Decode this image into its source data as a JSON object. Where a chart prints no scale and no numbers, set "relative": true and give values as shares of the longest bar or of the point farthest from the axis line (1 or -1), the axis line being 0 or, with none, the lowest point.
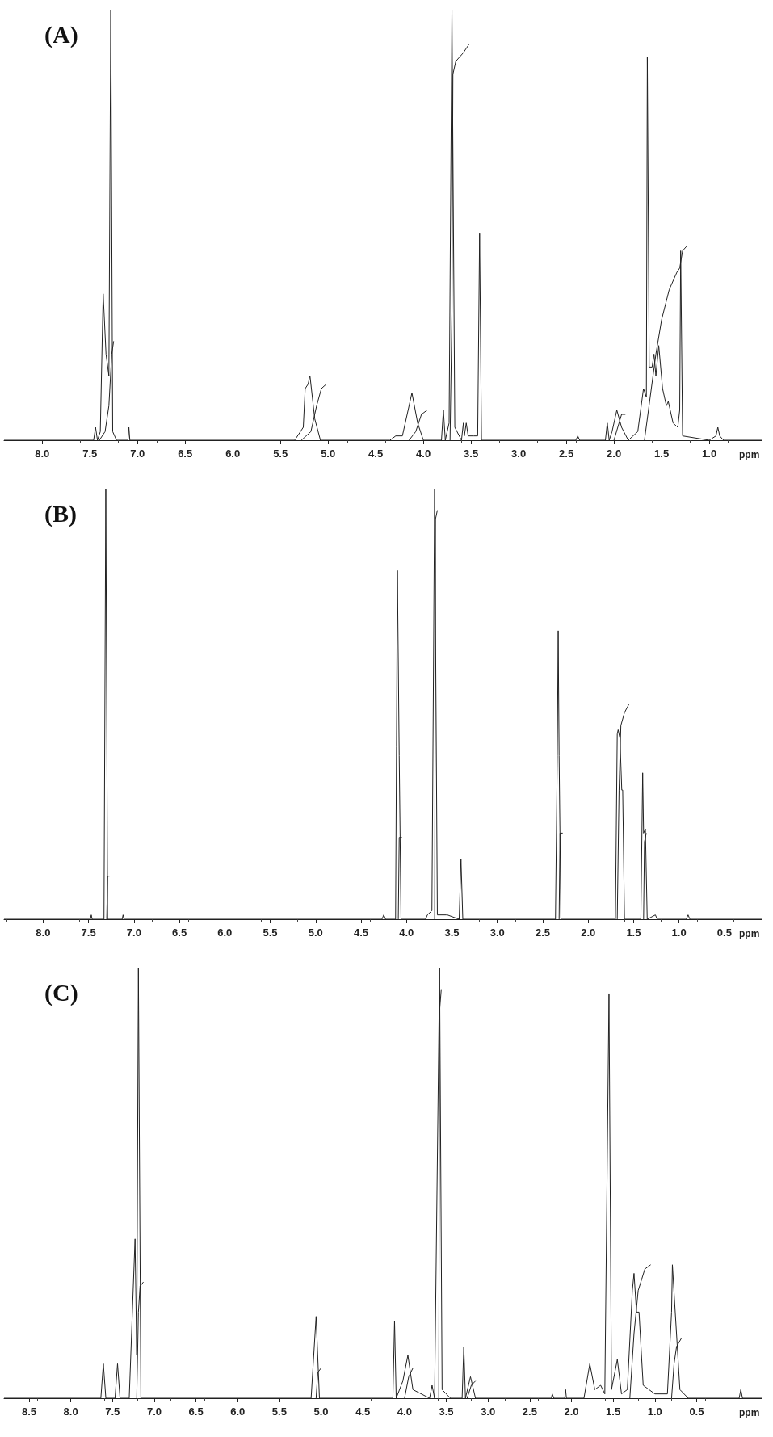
{
  "chart_data": [
    {
      "type": "line",
      "title": "(A)",
      "xlabel": "ppm",
      "relative": true,
      "xlim": [
        8.4,
        0.45
      ],
      "xticks": [
        {
          "value": 8,
          "label": "8.0"
        },
        7.5,
        {
          "value": 7,
          "label": "7.0"
        },
        6.5,
        {
          "value": 6,
          "label": "6.0"
        },
        5.5,
        {
          "value": 5,
          "label": "5.0"
        },
        4.5,
        {
          "value": 4,
          "label": "4.0"
        },
        3.5,
        {
          "value": 3,
          "label": "3.0"
        },
        2.5,
        {
          "value": 2,
          "label": "2.0"
        },
        1.5,
        {
          "value": 1,
          "label": "1.0"
        }
      ],
      "series": [
        {
          "color": "#222222",
          "x": [
            8.4,
            7.46,
            7.44,
            7.42,
            7.39,
            7.36,
            7.33,
            7.3,
            7.28,
            7.26,
            7.22,
            7.1,
            7.09,
            7.08,
            5.35,
            5.26,
            5.24,
            5.21,
            5.19,
            5.14,
            5.08,
            4.35,
            4.29,
            4.22,
            4.17,
            4.12,
            4.06,
            4.0,
            3.81,
            3.79,
            3.77,
            3.73,
            3.7,
            3.67,
            3.6,
            3.58,
            3.57,
            3.55,
            3.53,
            3.47,
            3.43,
            3.41,
            3.39,
            2.4,
            2.38,
            2.36,
            2.09,
            2.07,
            2.05,
            2.02,
            1.97,
            1.92,
            1.85,
            1.75,
            1.69,
            1.66,
            1.65,
            1.63,
            1.6,
            1.58,
            1.56,
            1.53,
            1.49,
            1.45,
            1.43,
            1.38,
            1.33,
            1.31,
            1.3,
            1.28,
            1.0,
            0.93,
            0.91,
            0.89,
            0.85,
            0.45
          ],
          "values": [
            0,
            0,
            0.03,
            0,
            0.02,
            0.34,
            0.2,
            0.15,
            1,
            0.02,
            0,
            0,
            0.03,
            0,
            0,
            0.03,
            0.12,
            0.13,
            0.15,
            0.05,
            0,
            0,
            0.01,
            0.01,
            0.06,
            0.11,
            0.04,
            0,
            0,
            0.07,
            0,
            0.04,
            1,
            0.03,
            0,
            0.04,
            0.01,
            0.04,
            0.01,
            0.01,
            0.01,
            0.48,
            0,
            0,
            0.01,
            0,
            0,
            0.04,
            0,
            0.02,
            0.07,
            0.03,
            0,
            0.02,
            0.12,
            0.1,
            0.89,
            0.17,
            0.17,
            0.2,
            0.15,
            0.22,
            0.12,
            0.08,
            0.09,
            0.04,
            0.03,
            0.07,
            0.44,
            0.01,
            0,
            0.01,
            0.03,
            0.01,
            0,
            0
          ]
        },
        {
          "color": "#222222",
          "x": [
            7.4,
            7.34,
            7.3,
            7.27,
            7.25
          ],
          "values": [
            0,
            0.02,
            0.08,
            0.2,
            0.23
          ]
        },
        {
          "color": "#222222",
          "x": [
            5.28,
            5.18,
            5.12,
            5.07,
            5.02
          ],
          "values": [
            0,
            0.02,
            0.08,
            0.12,
            0.13
          ]
        },
        {
          "color": "#222222",
          "x": [
            4.15,
            4.08,
            4.02,
            3.96
          ],
          "values": [
            0,
            0.02,
            0.06,
            0.07
          ]
        },
        {
          "color": "#222222",
          "x": [
            3.72,
            3.7,
            3.69,
            3.66,
            3.58,
            3.52
          ],
          "values": [
            0,
            0.3,
            0.85,
            0.88,
            0.9,
            0.92
          ]
        },
        {
          "color": "#222222",
          "x": [
            2.0,
            1.96,
            1.92,
            1.88
          ],
          "values": [
            0,
            0.03,
            0.06,
            0.06
          ]
        },
        {
          "color": "#222222",
          "x": [
            1.68,
            1.62,
            1.56,
            1.5,
            1.42,
            1.34,
            1.31,
            1.28,
            1.24
          ],
          "values": [
            0,
            0.1,
            0.2,
            0.28,
            0.35,
            0.39,
            0.4,
            0.44,
            0.45
          ]
        }
      ]
    },
    {
      "type": "line",
      "title": "(B)",
      "xlabel": "ppm",
      "relative": true,
      "xlim": [
        8.43,
        0.09
      ],
      "xticks": [
        {
          "value": 8,
          "label": "8.0"
        },
        7.5,
        {
          "value": 7,
          "label": "7.0"
        },
        6.5,
        {
          "value": 6,
          "label": "6.0"
        },
        5.5,
        {
          "value": 5,
          "label": "5.0"
        },
        4.5,
        {
          "value": 4,
          "label": "4.0"
        },
        3.5,
        {
          "value": 3,
          "label": "3.0"
        },
        2.5,
        {
          "value": 2,
          "label": "2.0"
        },
        1.5,
        {
          "value": 1,
          "label": "1.0"
        },
        0.5
      ],
      "series": [
        {
          "color": "#222222",
          "x": [
            8.43,
            7.48,
            7.47,
            7.46,
            7.33,
            7.31,
            7.29,
            7.13,
            7.12,
            7.11,
            4.27,
            4.25,
            4.23,
            4.12,
            4.11,
            4.1,
            4.08,
            4.06,
            3.79,
            3.77,
            3.72,
            3.69,
            3.66,
            3.56,
            3.55,
            3.42,
            3.4,
            3.38,
            2.36,
            2.34,
            2.33,
            2.32,
            2.3,
            1.7,
            1.68,
            1.67,
            1.65,
            1.63,
            1.62,
            1.6,
            1.42,
            1.4,
            1.39,
            1.37,
            1.35,
            1.26,
            1.24,
            0.92,
            0.9,
            0.88,
            0.09
          ],
          "values": [
            0,
            0,
            0.01,
            0,
            0,
            1,
            0,
            0,
            0.01,
            0,
            0,
            0.01,
            0,
            0,
            0.4,
            0.81,
            0.38,
            0,
            0,
            0.01,
            0.02,
            1,
            0.01,
            0.01,
            0.01,
            0,
            0.14,
            0,
            0,
            0.38,
            0.67,
            0.38,
            0,
            0,
            0.43,
            0.44,
            0.42,
            0.3,
            0.3,
            0,
            0,
            0.34,
            0.2,
            0.21,
            0,
            0.01,
            0,
            0,
            0.01,
            0,
            0
          ]
        },
        {
          "color": "#222222",
          "x": [
            7.3,
            7.29,
            7.27
          ],
          "values": [
            0,
            0.1,
            0.1
          ]
        },
        {
          "color": "#222222",
          "x": [
            4.09,
            4.08,
            4.05
          ],
          "values": [
            0,
            0.19,
            0.19
          ]
        },
        {
          "color": "#222222",
          "x": [
            3.69,
            3.68,
            3.66
          ],
          "values": [
            0,
            0.93,
            0.95
          ]
        },
        {
          "color": "#222222",
          "x": [
            2.32,
            2.31,
            2.28
          ],
          "values": [
            0,
            0.2,
            0.2
          ]
        },
        {
          "color": "#222222",
          "x": [
            1.68,
            1.66,
            1.64,
            1.6,
            1.55
          ],
          "values": [
            0,
            0.3,
            0.45,
            0.48,
            0.5
          ]
        },
        {
          "color": "#222222",
          "x": [
            1.39,
            1.38,
            1.36
          ],
          "values": [
            0,
            0.18,
            0.2
          ]
        }
      ]
    },
    {
      "type": "line",
      "title": "(C)",
      "xlabel": "ppm",
      "relative": true,
      "xlim": [
        8.8,
        -0.28
      ],
      "xticks": [
        8.5,
        {
          "value": 8,
          "label": "8.0"
        },
        7.5,
        {
          "value": 7,
          "label": "7.0"
        },
        6.5,
        {
          "value": 6,
          "label": "6.0"
        },
        5.5,
        {
          "value": 5,
          "label": "5.0"
        },
        4.5,
        {
          "value": 4,
          "label": "4.0"
        },
        3.5,
        {
          "value": 3,
          "label": "3.0"
        },
        2.5,
        {
          "value": 2,
          "label": "2.0"
        },
        1.5,
        {
          "value": 1,
          "label": "1.0"
        },
        0.5
      ],
      "series": [
        {
          "color": "#222222",
          "x": [
            8.8,
            7.64,
            7.61,
            7.58,
            7.47,
            7.44,
            7.41,
            7.3,
            7.23,
            7.21,
            7.19,
            7.16,
            5.12,
            5.06,
            5.02,
            4.14,
            4.12,
            4.1,
            4.02,
            3.96,
            3.9,
            3.7,
            3.67,
            3.64,
            3.58,
            3.55,
            3.45,
            3.31,
            3.29,
            3.27,
            3.21,
            3.15,
            2.24,
            2.23,
            2.21,
            2.08,
            2.07,
            2.06,
            1.85,
            1.78,
            1.72,
            1.65,
            1.6,
            1.55,
            1.52,
            1.45,
            1.4,
            1.33,
            1.27,
            1.25,
            1.22,
            1.19,
            1.14,
            1.0,
            0.85,
            0.8,
            0.79,
            0.75,
            0.7,
            0.6,
            -0.01,
            -0.03,
            -0.05,
            -0.28
          ],
          "values": [
            0,
            0,
            0.08,
            0,
            0,
            0.08,
            0,
            0,
            0.37,
            0.1,
            1,
            0,
            0,
            0.19,
            0,
            0,
            0.18,
            0,
            0.04,
            0.1,
            0.02,
            0,
            0.03,
            0,
            1,
            0.02,
            0,
            0,
            0.12,
            0,
            0.05,
            0,
            0,
            0.01,
            0,
            0,
            0.02,
            0,
            0,
            0.08,
            0.02,
            0.03,
            0.01,
            0.94,
            0.02,
            0.09,
            0.01,
            0.02,
            0.25,
            0.29,
            0.2,
            0.2,
            0.03,
            0.01,
            0.01,
            0.2,
            0.31,
            0.18,
            0.02,
            0,
            0,
            0.02,
            0,
            0
          ]
        },
        {
          "color": "#222222",
          "x": [
            7.21,
            7.19,
            7.17,
            7.13
          ],
          "values": [
            0,
            0.2,
            0.26,
            0.27
          ]
        },
        {
          "color": "#222222",
          "x": [
            5.06,
            5.04,
            5.0
          ],
          "values": [
            0,
            0.06,
            0.07
          ]
        },
        {
          "color": "#222222",
          "x": [
            4.0,
            3.95,
            3.9
          ],
          "values": [
            0,
            0.05,
            0.07
          ]
        },
        {
          "color": "#222222",
          "x": [
            3.59,
            3.58,
            3.56
          ],
          "values": [
            0,
            0.9,
            0.95
          ]
        },
        {
          "color": "#222222",
          "x": [
            3.25,
            3.2,
            3.15
          ],
          "values": [
            0,
            0.03,
            0.04
          ]
        },
        {
          "color": "#222222",
          "x": [
            1.3,
            1.25,
            1.2,
            1.12,
            1.05
          ],
          "values": [
            0,
            0.15,
            0.25,
            0.3,
            0.31
          ]
        },
        {
          "color": "#222222",
          "x": [
            0.8,
            0.77,
            0.74,
            0.68
          ],
          "values": [
            0,
            0.08,
            0.12,
            0.14
          ]
        }
      ]
    }
  ]
}
